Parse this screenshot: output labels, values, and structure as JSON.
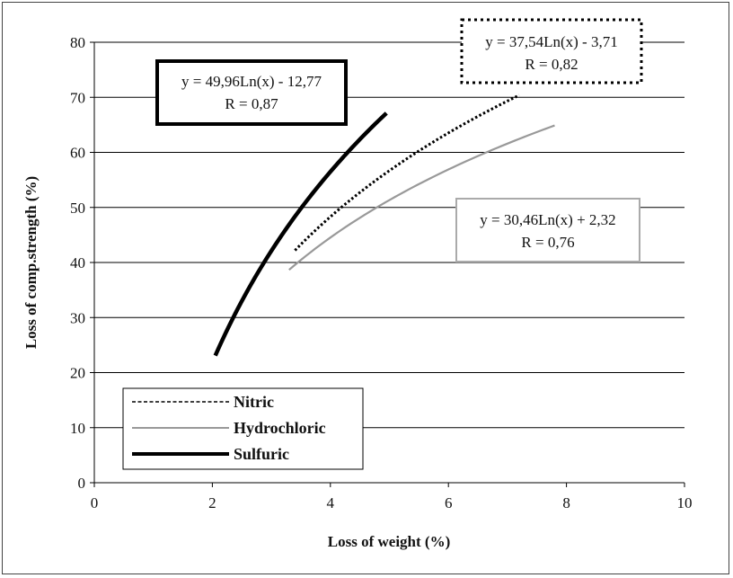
{
  "chart_data": {
    "type": "line",
    "title": "",
    "xlabel": "Loss of weight (%)",
    "ylabel": "Loss of comp.strength (%)",
    "xlim": [
      0,
      10
    ],
    "ylim": [
      0,
      80
    ],
    "x_ticks": [
      "0",
      "2",
      "4",
      "6",
      "8",
      "10"
    ],
    "y_ticks": [
      "0",
      "10",
      "20",
      "30",
      "40",
      "50",
      "60",
      "70",
      "80"
    ],
    "grid": "horizontal",
    "legend_position": "bottom-left",
    "series": [
      {
        "name": "Nitric",
        "style": "dotted",
        "color": "#000000",
        "x": [
          3.4,
          4.0,
          5.0,
          6.0,
          7.2
        ],
        "y": [
          42.2,
          48.3,
          56.7,
          63.5,
          70.4
        ],
        "equation": "y = 37,54Ln(x) - 3,71",
        "r": "R = 0,82"
      },
      {
        "name": "Hydrochloric",
        "style": "solid-thin",
        "color": "#999999",
        "x": [
          3.3,
          4.0,
          5.0,
          6.0,
          7.0,
          7.8
        ],
        "y": [
          38.7,
          44.5,
          51.3,
          56.9,
          61.6,
          64.9
        ],
        "equation": "y = 30,46Ln(x) + 2,32",
        "r": "R = 0,76"
      },
      {
        "name": "Sulfuric",
        "style": "solid-thick",
        "color": "#000000",
        "x": [
          2.05,
          2.5,
          3.0,
          3.5,
          4.0,
          4.5,
          4.95
        ],
        "y": [
          23.1,
          33.0,
          42.1,
          49.8,
          56.5,
          62.4,
          67.1
        ],
        "equation": "y = 49,96Ln(x) - 12,77",
        "r": "R = 0,87"
      }
    ]
  },
  "annotations": {
    "sulfuric": {
      "line1": "y = 49,96Ln(x) - 12,77",
      "line2": "R = 0,87"
    },
    "nitric": {
      "line1": "y = 37,54Ln(x) - 3,71",
      "line2": "R = 0,82"
    },
    "hydrochloric": {
      "line1": "y = 30,46Ln(x) + 2,32",
      "line2": "R = 0,76"
    }
  },
  "legend": {
    "nitric": "Nitric",
    "hydrochloric": "Hydrochloric",
    "sulfuric": "Sulfuric"
  }
}
